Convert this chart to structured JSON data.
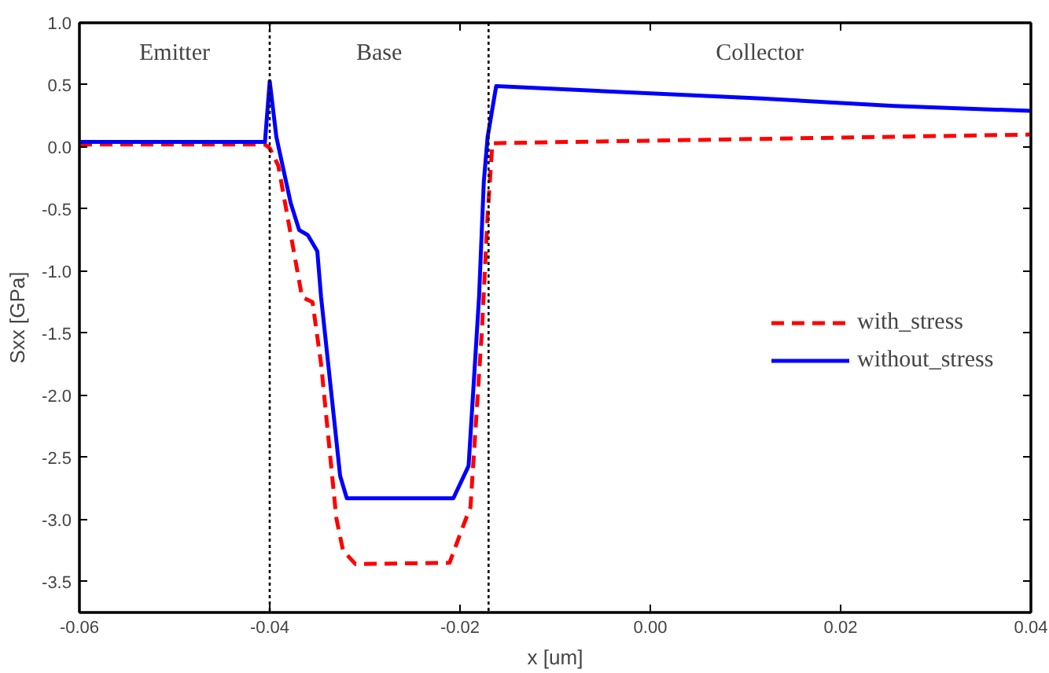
{
  "chart_data": {
    "type": "line",
    "xlabel": "x [um]",
    "ylabel": "Sxx [GPa]",
    "xlim": [
      -0.06,
      0.04
    ],
    "ylim": [
      -3.75,
      1.0
    ],
    "xticks": [
      {
        "value": -0.06,
        "label": "-0.06"
      },
      {
        "value": -0.04,
        "label": "-0.04"
      },
      {
        "value": -0.02,
        "label": "-0.02"
      },
      {
        "value": 0,
        "label": "0.00"
      },
      {
        "value": 0.02,
        "label": "0.02"
      },
      {
        "value": 0.04,
        "label": "0.04"
      }
    ],
    "yticks": [
      {
        "value": 1,
        "label": "1.0"
      },
      0.5,
      {
        "value": 0,
        "label": "0.0"
      },
      -0.5,
      {
        "value": -1,
        "label": "-1.0"
      },
      -1.5,
      {
        "value": -2,
        "label": "-2.0"
      },
      -2.5,
      {
        "value": -3,
        "label": "-3.0"
      },
      -3.5
    ],
    "annotations": [
      "Emitter",
      "Base",
      "Collector"
    ],
    "ref_lines": [
      {
        "axis": "x",
        "value": -0.04,
        "color": "#000000",
        "line_style": "dotted"
      },
      {
        "axis": "x",
        "value": -0.017,
        "color": "#000000",
        "line_style": "dotted"
      }
    ],
    "grid": false,
    "legend": "right",
    "marker": "none",
    "series": [
      {
        "name": "with_stress",
        "color": "#ff0000",
        "line_style": "dashed",
        "x": [
          -0.06,
          -0.0405,
          -0.04,
          -0.0391,
          -0.0366,
          -0.0355,
          -0.0346,
          -0.033,
          -0.0323,
          -0.031,
          -0.0211,
          -0.0198,
          -0.0189,
          -0.0177,
          -0.0171,
          -0.0166,
          0.04
        ],
        "values": [
          0.02,
          0.02,
          -0.01,
          -0.15,
          -1.21,
          -1.25,
          -1.75,
          -2.99,
          -3.25,
          -3.36,
          -3.35,
          -3.08,
          -2.9,
          -1.48,
          -0.55,
          0.03,
          0.1
        ]
      },
      {
        "name": "without_stress",
        "color": "#0000ff",
        "line_style": "solid",
        "x": [
          -0.06,
          -0.0405,
          -0.04,
          -0.0393,
          -0.0378,
          -0.0369,
          -0.036,
          -0.035,
          -0.0346,
          -0.0326,
          -0.0319,
          -0.0207,
          -0.0191,
          -0.018,
          -0.0175,
          -0.0171,
          -0.0162,
          0.0117,
          0.0256,
          0.04
        ],
        "values": [
          0.04,
          0.04,
          0.53,
          0.08,
          -0.45,
          -0.67,
          -0.71,
          -0.84,
          -1.21,
          -2.65,
          -2.83,
          -2.83,
          -2.57,
          -1.21,
          -0.28,
          0.08,
          0.49,
          0.39,
          0.33,
          0.29
        ]
      }
    ]
  }
}
